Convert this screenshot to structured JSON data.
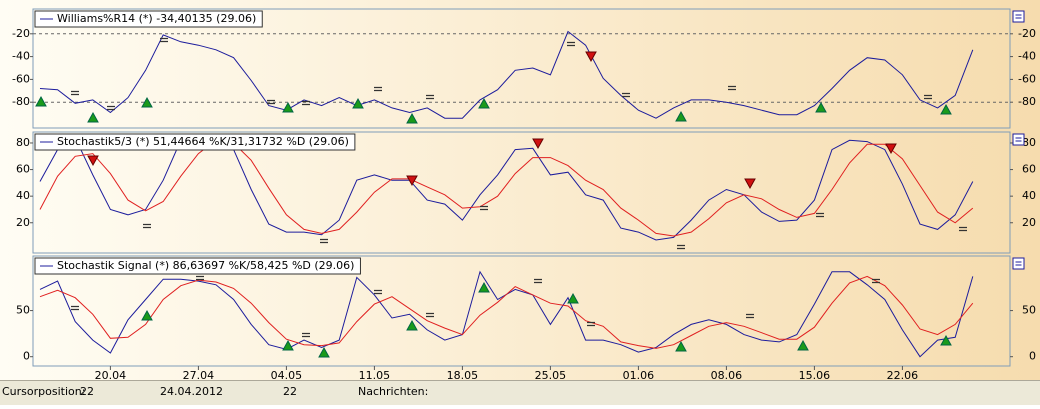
{
  "x_axis": {
    "categories": [
      null,
      null,
      null,
      null,
      "20.04",
      null,
      null,
      null,
      null,
      "27.04",
      null,
      null,
      null,
      null,
      "04.05",
      null,
      null,
      null,
      null,
      "11.05",
      null,
      null,
      null,
      null,
      "18.05",
      null,
      null,
      null,
      null,
      "25.05",
      null,
      null,
      null,
      null,
      "01.06",
      null,
      null,
      null,
      null,
      "08.06",
      null,
      null,
      null,
      null,
      "15.06",
      null,
      null,
      null,
      null,
      "22.06",
      null,
      null,
      null,
      null
    ]
  },
  "chart_data": [
    {
      "type": "line",
      "title": "Williams%R14 (*) -34,40135 (29.06)",
      "ylim": [
        -100,
        0
      ],
      "yticks": [
        -20,
        -40,
        -60,
        -80
      ],
      "levels": [
        -20,
        -80
      ],
      "series": [
        {
          "color": "#1c1c9c",
          "values": [
            -68,
            -69,
            -81,
            -78,
            -89,
            -76,
            -52,
            -21,
            -27,
            -30,
            -34,
            -41,
            -61,
            -83,
            -87,
            -78,
            -83,
            -76,
            -83,
            -78,
            -85,
            -89,
            -85,
            -94,
            -94,
            -78,
            -69,
            -52,
            -50,
            -56,
            -18,
            -30,
            -59,
            -74,
            -87,
            -94,
            -85,
            -78,
            -78,
            -80,
            -83,
            -87,
            -91,
            -91,
            -83,
            -68,
            -52,
            -41,
            -43,
            -56,
            -78,
            -85,
            -74,
            -34
          ]
        }
      ]
    },
    {
      "type": "line",
      "title": "Stochastik5/3 (*) 51,44664 %K/31,31732 %D (29.06)",
      "ylim": [
        -2,
        86
      ],
      "yticks": [
        80,
        60,
        40,
        20
      ],
      "series": [
        {
          "color": "#1c1c9c",
          "values": [
            51,
            75,
            84,
            56,
            30,
            26,
            30,
            52,
            82,
            82,
            82,
            75,
            45,
            19,
            13,
            13,
            11,
            22,
            52,
            56,
            52,
            52,
            37,
            34,
            22,
            41,
            56,
            75,
            76,
            56,
            58,
            41,
            37,
            16,
            13,
            7,
            9,
            22,
            37,
            45,
            41,
            28,
            21,
            22,
            37,
            75,
            82,
            81,
            75,
            49,
            19,
            15,
            26,
            51
          ]
        },
        {
          "color": "#e02020",
          "values": [
            30,
            55,
            70,
            72,
            57,
            37,
            29,
            36,
            55,
            72,
            82,
            80,
            67,
            46,
            26,
            15,
            12,
            15,
            28,
            43,
            53,
            53,
            47,
            41,
            31,
            32,
            40,
            57,
            69,
            69,
            63,
            52,
            45,
            31,
            22,
            12,
            10,
            13,
            23,
            35,
            41,
            38,
            30,
            24,
            27,
            45,
            65,
            79,
            79,
            68,
            48,
            28,
            20,
            31
          ]
        }
      ]
    },
    {
      "type": "line",
      "title": "Stochastik Signal (*) 86,63697 %K/58,425 %D (29.06)",
      "ylim": [
        -9,
        107
      ],
      "yticks": [
        50,
        0
      ],
      "series": [
        {
          "color": "#1c1c9c",
          "values": [
            73,
            82,
            38,
            18,
            4,
            40,
            62,
            84,
            84,
            82,
            78,
            62,
            35,
            13,
            8,
            18,
            10,
            18,
            86,
            67,
            42,
            46,
            29,
            18,
            24,
            92,
            62,
            73,
            67,
            35,
            64,
            18,
            18,
            13,
            5,
            10,
            24,
            35,
            40,
            35,
            24,
            18,
            16,
            24,
            57,
            92,
            92,
            78,
            62,
            29,
            0,
            18,
            21,
            87
          ]
        },
        {
          "color": "#e02020",
          "values": [
            65,
            72,
            64,
            46,
            20,
            21,
            35,
            62,
            77,
            83,
            81,
            74,
            58,
            37,
            19,
            13,
            12,
            15,
            38,
            57,
            65,
            52,
            39,
            31,
            24,
            45,
            59,
            76,
            67,
            58,
            55,
            39,
            33,
            16,
            12,
            9,
            13,
            23,
            33,
            37,
            33,
            26,
            19,
            19,
            32,
            58,
            80,
            87,
            77,
            56,
            30,
            24,
            35,
            58
          ]
        }
      ]
    }
  ],
  "status_bar": {
    "cursor_label": "Cursorposition:",
    "cursor_value": "22",
    "date": "24.04.2012",
    "value": "22",
    "news_label": "Nachrichten:"
  }
}
